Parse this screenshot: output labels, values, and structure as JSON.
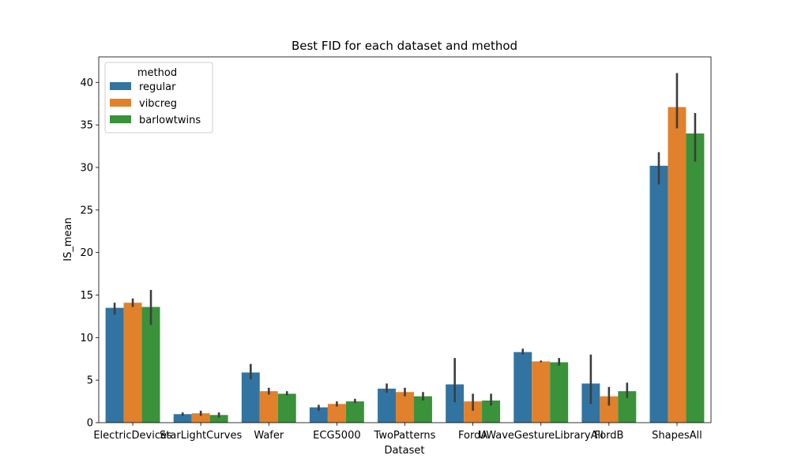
{
  "chart_data": {
    "type": "bar",
    "title": "Best FID for each dataset and method",
    "xlabel": "Dataset",
    "ylabel": "IS_mean",
    "ylim": [
      0,
      43
    ],
    "yticks": [
      0,
      5,
      10,
      15,
      20,
      25,
      30,
      35,
      40
    ],
    "ytick_labels": [
      "0",
      "5",
      "10",
      "15",
      "20",
      "25",
      "30",
      "35",
      "40"
    ],
    "grid": false,
    "legend": {
      "title": "method",
      "placement": "top-left"
    },
    "categories": [
      "ElectricDevices",
      "StarLightCurves",
      "Wafer",
      "ECG5000",
      "TwoPatterns",
      "FordA",
      "UWaveGestureLibraryAll",
      "FordB",
      "ShapesAll"
    ],
    "series": [
      {
        "name": "regular",
        "color": "#3274a1",
        "values": [
          13.5,
          1.0,
          5.9,
          1.8,
          4.0,
          4.5,
          8.3,
          4.6,
          30.2
        ],
        "error_low": [
          12.7,
          0.8,
          5.1,
          1.4,
          3.5,
          2.4,
          8.0,
          2.2,
          28.0
        ],
        "error_high": [
          14.1,
          1.2,
          6.9,
          2.1,
          4.6,
          7.6,
          8.7,
          8.0,
          31.8
        ]
      },
      {
        "name": "vibcreg",
        "color": "#e1812c",
        "values": [
          14.1,
          1.1,
          3.7,
          2.2,
          3.6,
          2.5,
          7.2,
          3.1,
          37.1
        ],
        "error_low": [
          13.6,
          0.8,
          3.3,
          1.9,
          3.1,
          1.4,
          7.1,
          2.0,
          34.6
        ],
        "error_high": [
          14.6,
          1.4,
          4.1,
          2.5,
          4.1,
          3.4,
          7.3,
          4.2,
          41.1
        ]
      },
      {
        "name": "barlowtwins",
        "color": "#3a923a",
        "values": [
          13.6,
          0.9,
          3.4,
          2.5,
          3.1,
          2.6,
          7.1,
          3.7,
          34.0
        ],
        "error_low": [
          11.5,
          0.6,
          3.2,
          2.3,
          2.6,
          2.0,
          6.7,
          2.9,
          30.7
        ],
        "error_high": [
          15.6,
          1.2,
          3.7,
          2.8,
          3.6,
          3.4,
          7.6,
          4.7,
          36.4
        ]
      }
    ]
  }
}
